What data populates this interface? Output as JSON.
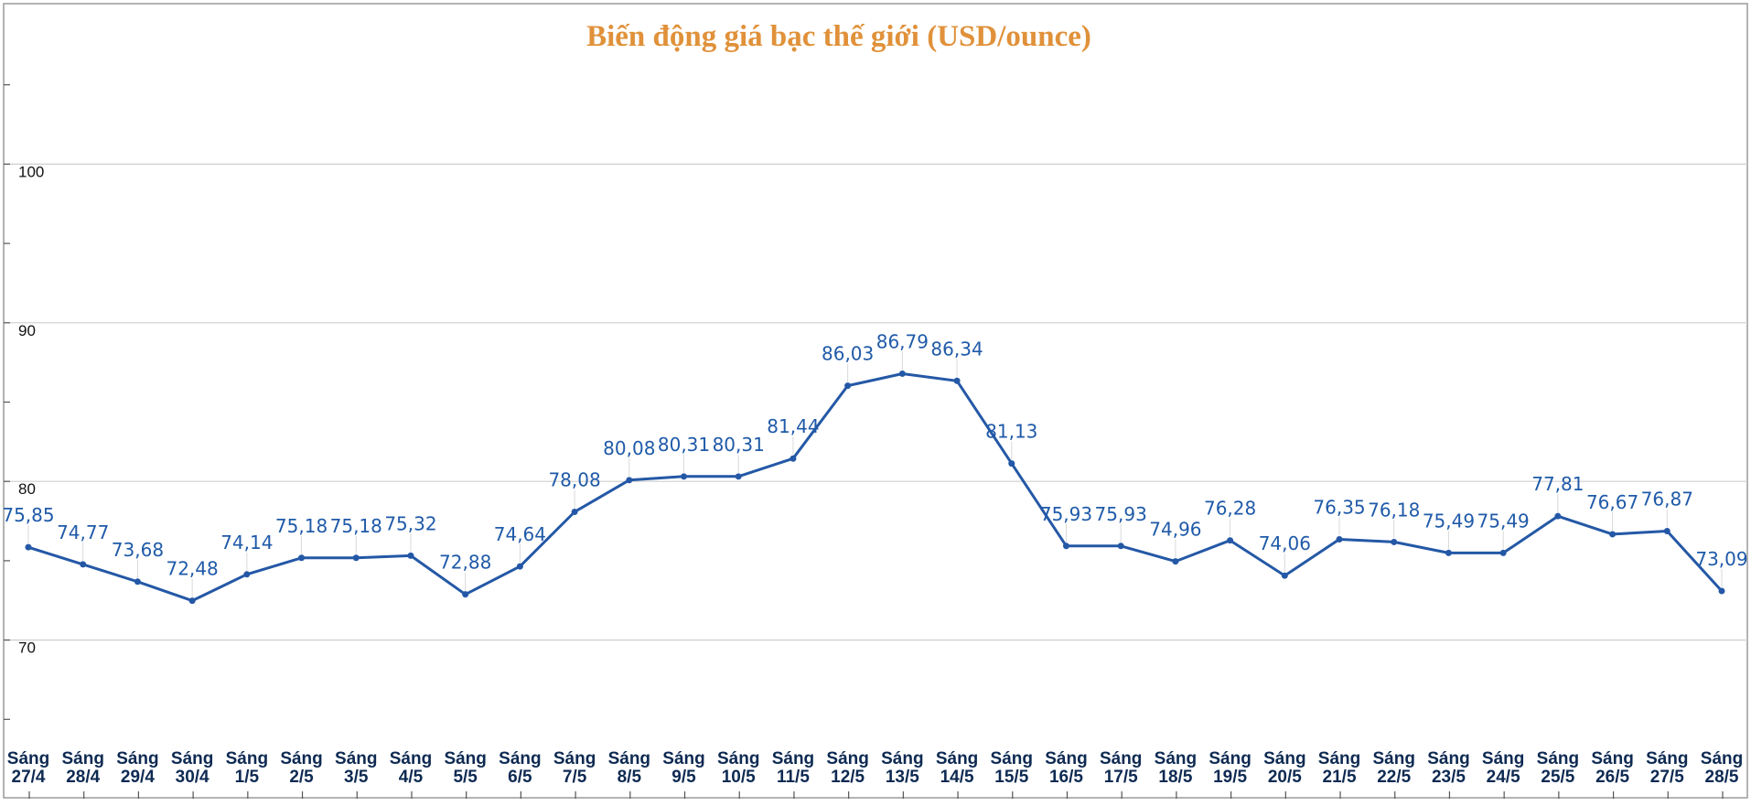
{
  "colors": {
    "title": "#e0913a",
    "series": "#2458a6",
    "labels": "#1f5aa8",
    "axis_text": "#0e2a52"
  },
  "chart_data": {
    "type": "line",
    "title": "Biến động giá bạc thế giới (USD/ounce)",
    "xlabel": "",
    "ylabel": "",
    "ylim": [
      60,
      110
    ],
    "yticks": [
      70,
      80,
      90,
      100
    ],
    "grid": true,
    "legend": "none",
    "categories": [
      [
        "Sáng",
        "27/4"
      ],
      [
        "Sáng",
        "28/4"
      ],
      [
        "Sáng",
        "29/4"
      ],
      [
        "Sáng",
        "30/4"
      ],
      [
        "Sáng",
        "1/5"
      ],
      [
        "Sáng",
        "2/5"
      ],
      [
        "Sáng",
        "3/5"
      ],
      [
        "Sáng",
        "4/5"
      ],
      [
        "Sáng",
        "5/5"
      ],
      [
        "Sáng",
        "6/5"
      ],
      [
        "Sáng",
        "7/5"
      ],
      [
        "Sáng",
        "8/5"
      ],
      [
        "Sáng",
        "9/5"
      ],
      [
        "Sáng",
        "10/5"
      ],
      [
        "Sáng",
        "11/5"
      ],
      [
        "Sáng",
        "12/5"
      ],
      [
        "Sáng",
        "13/5"
      ],
      [
        "Sáng",
        "14/5"
      ],
      [
        "Sáng",
        "15/5"
      ],
      [
        "Sáng",
        "16/5"
      ],
      [
        "Sáng",
        "17/5"
      ],
      [
        "Sáng",
        "18/5"
      ],
      [
        "Sáng",
        "19/5"
      ],
      [
        "Sáng",
        "20/5"
      ],
      [
        "Sáng",
        "21/5"
      ],
      [
        "Sáng",
        "22/5"
      ],
      [
        "Sáng",
        "23/5"
      ],
      [
        "Sáng",
        "24/5"
      ],
      [
        "Sáng",
        "25/5"
      ],
      [
        "Sáng",
        "26/5"
      ],
      [
        "Sáng",
        "27/5"
      ],
      [
        "Sáng",
        "28/5"
      ]
    ],
    "series": [
      {
        "values": [
          75.85,
          74.77,
          73.68,
          72.48,
          74.14,
          75.18,
          75.18,
          75.32,
          72.88,
          74.64,
          78.08,
          80.08,
          80.31,
          80.31,
          81.44,
          86.03,
          86.79,
          86.34,
          81.13,
          75.93,
          75.93,
          74.96,
          76.28,
          74.06,
          76.35,
          76.18,
          75.49,
          75.49,
          77.81,
          76.67,
          76.87,
          73.09
        ],
        "labels": [
          "75,85",
          "74,77",
          "73,68",
          "72,48",
          "74,14",
          "75,18",
          "75,18",
          "75,32",
          "72,88",
          "74,64",
          "78,08",
          "80,08",
          "80,31",
          "80,31",
          "81,44",
          "86,03",
          "86,79",
          "86,34",
          "81,13",
          "75,93",
          "75,93",
          "74,96",
          "76,28",
          "74,06",
          "76,35",
          "76,18",
          "75,49",
          "75,49",
          "77,81",
          "76,67",
          "76,87",
          "73,09"
        ]
      }
    ]
  }
}
